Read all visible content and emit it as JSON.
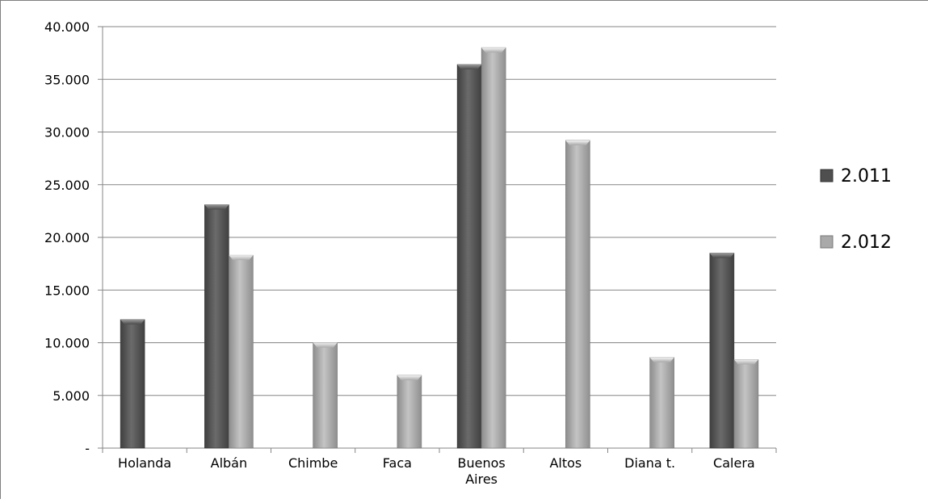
{
  "chart_data": {
    "type": "bar",
    "title": "",
    "xlabel": "",
    "ylabel": "",
    "categories": [
      [
        "Holanda"
      ],
      [
        "Albán"
      ],
      [
        "Chimbe"
      ],
      [
        "Faca"
      ],
      [
        "Buenos",
        "Aires"
      ],
      [
        "Altos"
      ],
      [
        "Diana t."
      ],
      [
        "Calera"
      ]
    ],
    "series": [
      {
        "name": "2.011",
        "color": "#595959",
        "values": [
          12200,
          23100,
          null,
          null,
          36400,
          null,
          null,
          18500
        ]
      },
      {
        "name": "2.012",
        "color": "#a6a6a6",
        "values": [
          null,
          18300,
          10000,
          6900,
          38000,
          29200,
          8600,
          8400
        ]
      }
    ],
    "ylim": [
      0,
      40000
    ],
    "yticks": [
      {
        "value": 0,
        "label": "-"
      },
      {
        "value": 5000,
        "label": "5.000"
      },
      {
        "value": 10000,
        "label": "10.000"
      },
      {
        "value": 15000,
        "label": "15.000"
      },
      {
        "value": 20000,
        "label": "20.000"
      },
      {
        "value": 25000,
        "label": "25.000"
      },
      {
        "value": 30000,
        "label": "30.000"
      },
      {
        "value": 35000,
        "label": "35.000"
      },
      {
        "value": 40000,
        "label": "40.000"
      }
    ],
    "grid": true,
    "legend": {
      "position": "right",
      "entries": [
        "2.011",
        "2.012"
      ]
    }
  }
}
